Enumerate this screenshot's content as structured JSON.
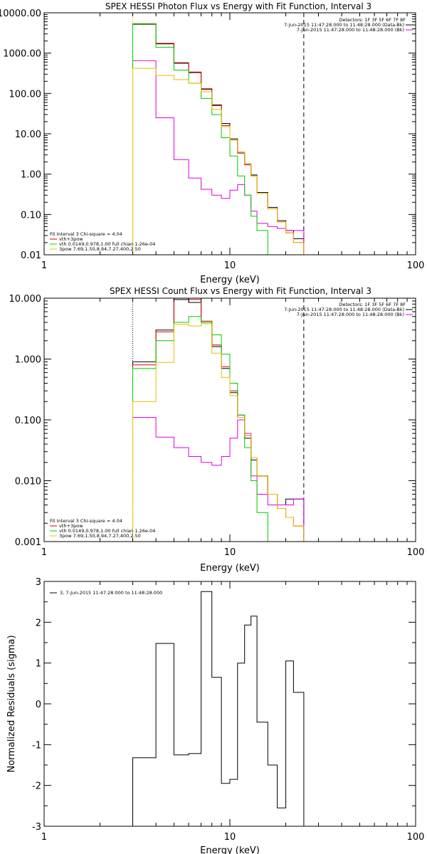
{
  "chart_data": [
    {
      "type": "line",
      "title": "SPEX HESSI Photon Flux vs Energy with Fit Function, Interval 3",
      "xlabel": "Energy (keV)",
      "ylabel": "",
      "xscale": "log",
      "yscale": "log",
      "xlim": [
        1,
        100
      ],
      "ylim": [
        0.01,
        10000
      ],
      "x_ticklabels": [
        "1",
        "10",
        "100"
      ],
      "y_ticklabels": [
        "0.01",
        "0.10",
        "1.00",
        "10.00",
        "100.00",
        "1000.00",
        "10000.00"
      ],
      "vlines": [
        {
          "x": 3,
          "style": "dotted",
          "color": "#000000"
        },
        {
          "x": 3,
          "style": "dotted",
          "color": "#e0c000"
        },
        {
          "x": 25,
          "style": "dashed",
          "color": "#000000"
        }
      ],
      "header_right": [
        "Detectors: 1F 3F 5F 6F 7F 8F",
        "7-Jun-2015 11:47:28.000 to 11:48:28.000 (Data-Bk)",
        "7-Jun-2015 11:47:28.000 to 11:48:28.000 (Bk)"
      ],
      "fit_info": [
        "Fit Interval 3   Chi-square = 4.04",
        "vth+3pow",
        "vth 0.0149,0.978,1.00  full chian 1.26e-04",
        "3pow 7.69,1.50,8.94,7.27,400,2.50"
      ],
      "edges": [
        3,
        4,
        5,
        6,
        7,
        8,
        9,
        10,
        11,
        12,
        13,
        14,
        16,
        18,
        20,
        22,
        25,
        28
      ],
      "series": [
        {
          "role": "data_minus_bk",
          "color": "#000000",
          "values": [
            5200,
            1700,
            560,
            330,
            130,
            52,
            18,
            7.5,
            3.5,
            1.8,
            0.95,
            0.35,
            0.15,
            0.07,
            0.04,
            0.025,
            null
          ]
        },
        {
          "role": "total_fit",
          "color": "#dd0000",
          "values": [
            5400,
            1750,
            580,
            340,
            125,
            50,
            16,
            7.0,
            3.3,
            1.7,
            0.9,
            0.33,
            0.14,
            0.065,
            0.035,
            0.02,
            null
          ]
        },
        {
          "role": "background",
          "color": "#e000e0",
          "values": [
            650,
            25,
            2.3,
            0.8,
            0.42,
            0.3,
            0.25,
            0.4,
            0.55,
            0.3,
            0.12,
            0.06,
            0.05,
            0.045,
            0.04,
            0.04,
            null
          ]
        },
        {
          "role": "thermal",
          "color": "#00cc00",
          "values": [
            5300,
            1400,
            380,
            180,
            75,
            30,
            8,
            2.8,
            0.9,
            0.3,
            0.09,
            0.04,
            0.01,
            null,
            null,
            null,
            null
          ]
        },
        {
          "role": "power_law",
          "color": "#e0c000",
          "values": [
            420,
            280,
            220,
            180,
            110,
            40,
            15,
            7.0,
            3.5,
            1.8,
            0.9,
            0.33,
            0.14,
            0.065,
            0.035,
            0.02,
            0.01
          ]
        }
      ]
    },
    {
      "type": "line",
      "title": "SPEX HESSI Count Flux vs Energy with Fit Function, Interval 3",
      "xlabel": "Energy (keV)",
      "ylabel": "",
      "xscale": "log",
      "yscale": "log",
      "xlim": [
        1,
        100
      ],
      "ylim": [
        0.001,
        10
      ],
      "x_ticklabels": [
        "1",
        "10",
        "100"
      ],
      "y_ticklabels": [
        "0.001",
        "0.010",
        "0.100",
        "1.000",
        "10.000"
      ],
      "vlines": [
        {
          "x": 3,
          "style": "dotted",
          "color": "#000000"
        },
        {
          "x": 25,
          "style": "dashed",
          "color": "#000000"
        }
      ],
      "header_right": [
        "Detectors: 1F 3F 5F 6F 7F 8F",
        "7-Jun-2015 11:47:28.000 to 11:48:28.000 (Data-Bk)",
        "7-Jun-2015 11:47:28.000 to 11:48:28.000 (Bk)"
      ],
      "fit_info": [
        "Fit Interval 3   Chi-square = 4.04",
        "vth+3pow",
        "vth 0.0149,0.978,1.00  full chian 1.26e-04",
        "3pow 7.69,1.50,8.94,7.27,400,2.50"
      ],
      "edges": [
        3,
        4,
        5,
        6,
        7,
        8,
        9,
        10,
        11,
        12,
        13,
        14,
        16,
        18,
        20,
        22,
        25,
        28
      ],
      "series": [
        {
          "role": "data_minus_bk",
          "color": "#000000",
          "values": [
            0.9,
            3.0,
            9.5,
            8.5,
            4.0,
            1.6,
            0.7,
            0.28,
            0.11,
            0.05,
            0.022,
            0.012,
            0.006,
            0.004,
            0.005,
            0.005,
            null
          ]
        },
        {
          "role": "total_fit",
          "color": "#dd0000",
          "values": [
            0.8,
            2.8,
            10.0,
            9.5,
            4.2,
            1.7,
            0.75,
            0.3,
            0.12,
            0.055,
            0.024,
            0.012,
            0.006,
            0.0035,
            0.0025,
            0.0018,
            null
          ]
        },
        {
          "role": "background",
          "color": "#e000e0",
          "values": [
            0.11,
            0.052,
            0.035,
            0.025,
            0.02,
            0.018,
            0.025,
            0.05,
            0.1,
            0.06,
            0.012,
            0.006,
            0.004,
            0.004,
            0.004,
            0.005,
            null
          ]
        },
        {
          "role": "thermal",
          "color": "#00cc00",
          "values": [
            0.7,
            2.0,
            4.0,
            5.0,
            4.0,
            2.5,
            1.2,
            0.4,
            0.12,
            0.035,
            0.01,
            0.003,
            0.0009,
            null,
            null,
            null,
            null
          ]
        },
        {
          "role": "power_law",
          "color": "#e0c000",
          "values": [
            0.2,
            0.88,
            3.7,
            3.5,
            3.8,
            1.25,
            0.5,
            0.25,
            0.11,
            0.055,
            0.024,
            0.012,
            0.006,
            0.0035,
            0.0025,
            0.0018,
            0.001
          ]
        }
      ]
    },
    {
      "type": "line",
      "title": "",
      "xlabel": "Energy (keV)",
      "ylabel": "Normalized Residuals (sigma)",
      "xscale": "log",
      "yscale": "linear",
      "xlim": [
        1,
        100
      ],
      "ylim": [
        -3,
        3
      ],
      "x_ticklabels": [
        "1",
        "10",
        "100"
      ],
      "y_ticklabels": [
        "-3",
        "-2",
        "-1",
        "0",
        "1",
        "2",
        "3"
      ],
      "legend": "3,  7-Jun-2015 11:47:28.000 to 11:48:28.000",
      "edges": [
        3,
        4,
        5,
        6,
        7,
        8,
        9,
        10,
        11,
        12,
        13,
        14,
        16,
        18,
        20,
        22,
        25
      ],
      "series": [
        {
          "color": "#000000",
          "values": [
            -1.32,
            1.48,
            -1.25,
            -1.22,
            2.75,
            0.65,
            -1.95,
            -1.85,
            1.0,
            1.93,
            2.15,
            -0.45,
            -1.5,
            -2.55,
            1.05,
            0.28
          ]
        }
      ]
    }
  ]
}
